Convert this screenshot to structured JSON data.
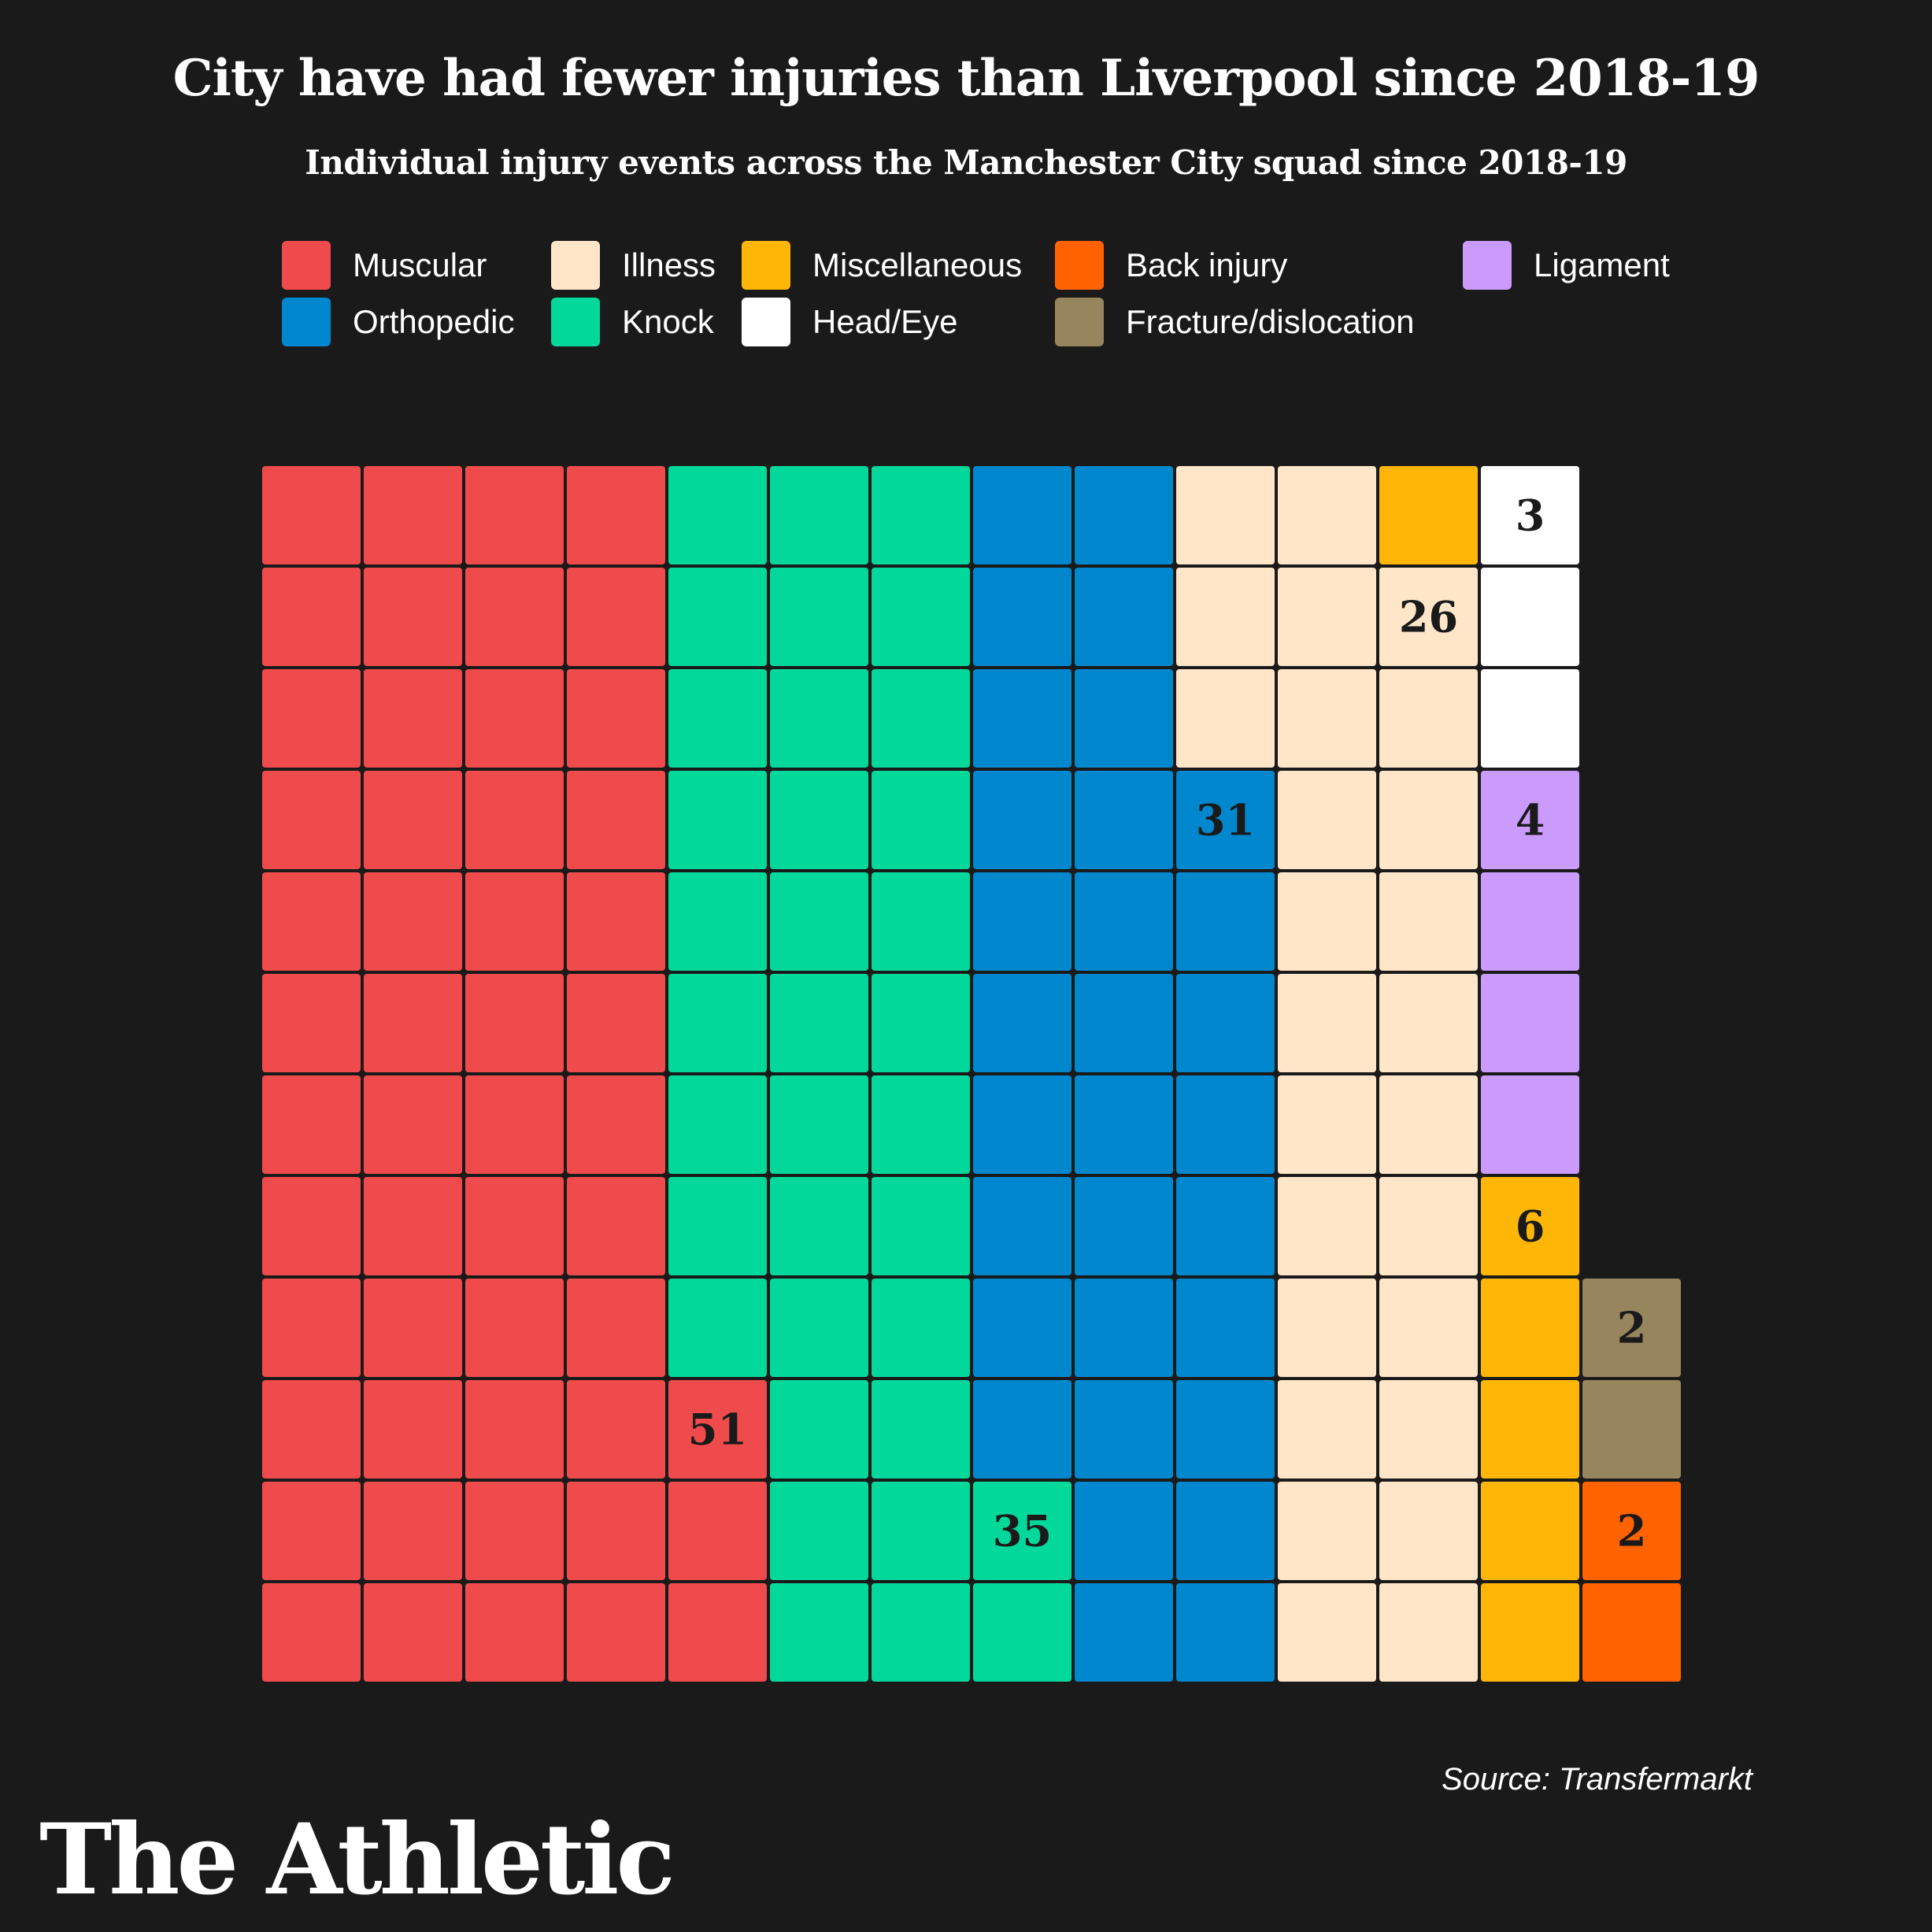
{
  "chart_data": {
    "type": "waffle",
    "title": "City have had fewer injuries than Liverpool since 2018-19",
    "subtitle": "Individual injury events across the Manchester City squad since 2018-19",
    "source": "Source: Transfermarkt",
    "unit": "injury events",
    "total": 160,
    "categories": [
      {
        "id": "muscular",
        "label": "Muscular",
        "value": 51,
        "color": "#f04b4c"
      },
      {
        "id": "knock",
        "label": "Knock",
        "value": 35,
        "color": "#03d89b"
      },
      {
        "id": "orthopedic",
        "label": "Orthopedic",
        "value": 31,
        "color": "#0087cd"
      },
      {
        "id": "illness",
        "label": "Illness",
        "value": 26,
        "color": "#ffe6c9"
      },
      {
        "id": "head-eye",
        "label": "Head/Eye",
        "value": 3,
        "color": "#ffffff"
      },
      {
        "id": "ligament",
        "label": "Ligament",
        "value": 4,
        "color": "#ca9bfb"
      },
      {
        "id": "miscellaneous",
        "label": "Miscellaneous",
        "value": 6,
        "color": "#ffb606"
      },
      {
        "id": "fracture-dislocation",
        "label": "Fracture/dislocation",
        "value": 2,
        "color": "#97855d"
      },
      {
        "id": "back-injury",
        "label": "Back injury",
        "value": 2,
        "color": "#ff6200"
      }
    ],
    "legend": [
      {
        "id": "muscular",
        "label": "Muscular",
        "color": "#f04b4c"
      },
      {
        "id": "illness",
        "label": "Illness",
        "color": "#ffe6c9"
      },
      {
        "id": "miscellaneous",
        "label": "Miscellaneous",
        "color": "#ffb606"
      },
      {
        "id": "back-injury",
        "label": "Back injury",
        "color": "#ff6200"
      },
      {
        "id": "ligament",
        "label": "Ligament",
        "color": "#ca9bfb"
      },
      {
        "id": "orthopedic",
        "label": "Orthopedic",
        "color": "#0087cd"
      },
      {
        "id": "knock",
        "label": "Knock",
        "color": "#03d89b"
      },
      {
        "id": "head-eye",
        "label": "Head/Eye",
        "color": "#ffffff"
      },
      {
        "id": "fracture-dislocation",
        "label": "Fracture/dislocation",
        "color": "#97855d"
      }
    ]
  },
  "brand": {
    "name": "The Athletic"
  },
  "colors": {
    "background": "#1a1a1a",
    "text": "#ffffff",
    "label_text": "#1a1a1a"
  }
}
